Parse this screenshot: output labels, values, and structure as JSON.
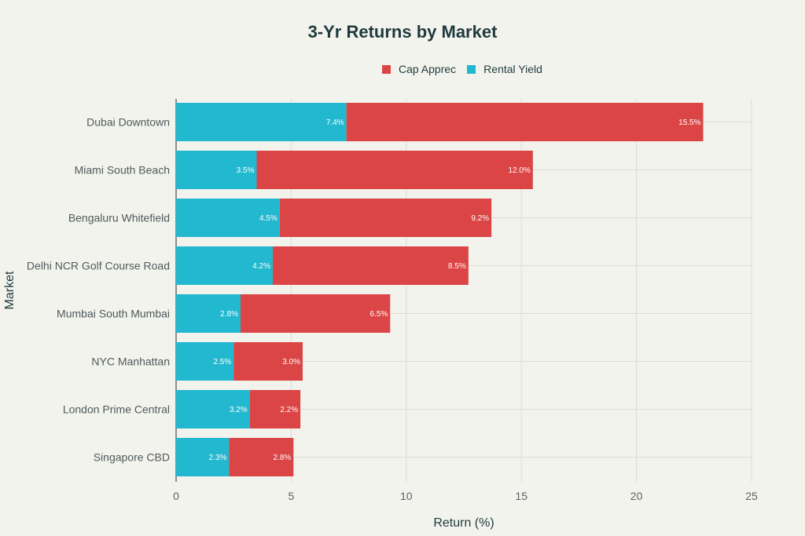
{
  "chart_data": {
    "type": "bar",
    "orientation": "horizontal",
    "stacked": true,
    "title": "3-Yr Returns by Market",
    "xlabel": "Return (%)",
    "ylabel": "Market",
    "xlim": [
      0,
      25
    ],
    "xticks": [
      0,
      5,
      10,
      15,
      20,
      25
    ],
    "grid": true,
    "legend_position": "top-center",
    "categories": [
      "Dubai Downtown",
      "Miami South Beach",
      "Bengaluru Whitefield",
      "Delhi NCR Golf Course Road",
      "Mumbai South Mumbai",
      "NYC Manhattan",
      "London Prime Central",
      "Singapore CBD"
    ],
    "series": [
      {
        "name": "Rental Yield",
        "color": "#22b8cf",
        "values": [
          7.4,
          3.5,
          4.5,
          4.2,
          2.8,
          2.5,
          3.2,
          2.3
        ],
        "labels": [
          "7.4%",
          "3.5%",
          "4.5%",
          "4.2%",
          "2.8%",
          "2.5%",
          "3.2%",
          "2.3%"
        ]
      },
      {
        "name": "Cap Apprec",
        "color": "#db4545",
        "values": [
          15.5,
          12.0,
          9.2,
          8.5,
          6.5,
          3.0,
          2.2,
          2.8
        ],
        "labels": [
          "15.5%",
          "12.0%",
          "9.2%",
          "8.5%",
          "6.5%",
          "3.0%",
          "2.2%",
          "2.8%"
        ]
      }
    ],
    "legend_order": [
      "Cap Apprec",
      "Rental Yield"
    ]
  }
}
